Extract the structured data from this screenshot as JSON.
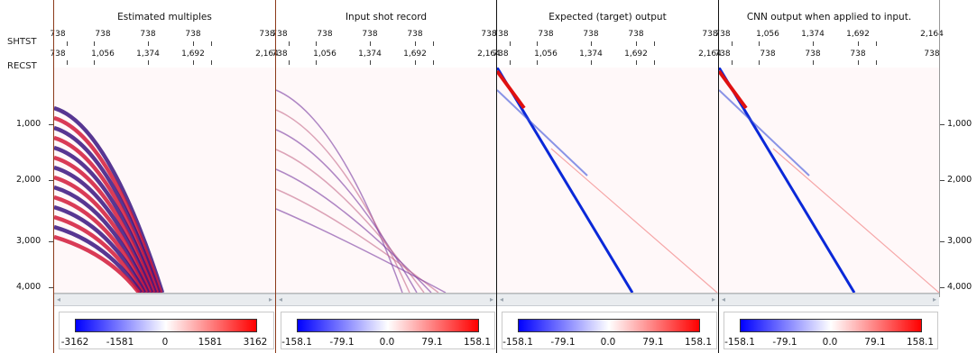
{
  "axis_headers": {
    "shot": "SHTST",
    "receiver": "RECST"
  },
  "panels": [
    {
      "title": "Estimated multiples",
      "top_ticks": [
        "738",
        "738",
        "738",
        "738",
        "738"
      ],
      "sub_ticks": [
        "738",
        "1,056",
        "1,374",
        "1,692",
        "2,164"
      ],
      "colorbar": [
        "-3162",
        "-1581",
        "0",
        "1581",
        "3162"
      ]
    },
    {
      "title": "Input shot record",
      "top_ticks": [
        "738",
        "738",
        "738",
        "738",
        "738"
      ],
      "sub_ticks": [
        "738",
        "1,056",
        "1,374",
        "1,692",
        "2,164"
      ],
      "colorbar": [
        "-158.1",
        "-79.1",
        "0.0",
        "79.1",
        "158.1"
      ]
    },
    {
      "title": "Expected (target) output",
      "top_ticks": [
        "738",
        "738",
        "738",
        "738",
        "738"
      ],
      "sub_ticks": [
        "738",
        "1,056",
        "1,374",
        "1,692",
        "2,164"
      ],
      "colorbar": [
        "-158.1",
        "-79.1",
        "0.0",
        "79.1",
        "158.1"
      ]
    },
    {
      "title": "CNN output when applied to input.",
      "top_ticks": [
        "738",
        "1,056",
        "1,374",
        "1,692",
        "2,164"
      ],
      "sub_ticks": [
        "738",
        "738",
        "738",
        "738",
        "738"
      ],
      "colorbar": [
        "-158.1",
        "-79.1",
        "0.0",
        "79.1",
        "158.1"
      ]
    }
  ],
  "depth_axis": [
    "1,000",
    "2,000",
    "3,000",
    "4,000"
  ],
  "icons": {
    "scroll_left": "arrow-left-icon",
    "scroll_right": "arrow-right-icon"
  },
  "colors": {
    "negative": "#0000ff",
    "zero": "#ffffff",
    "positive": "#ff0000"
  }
}
